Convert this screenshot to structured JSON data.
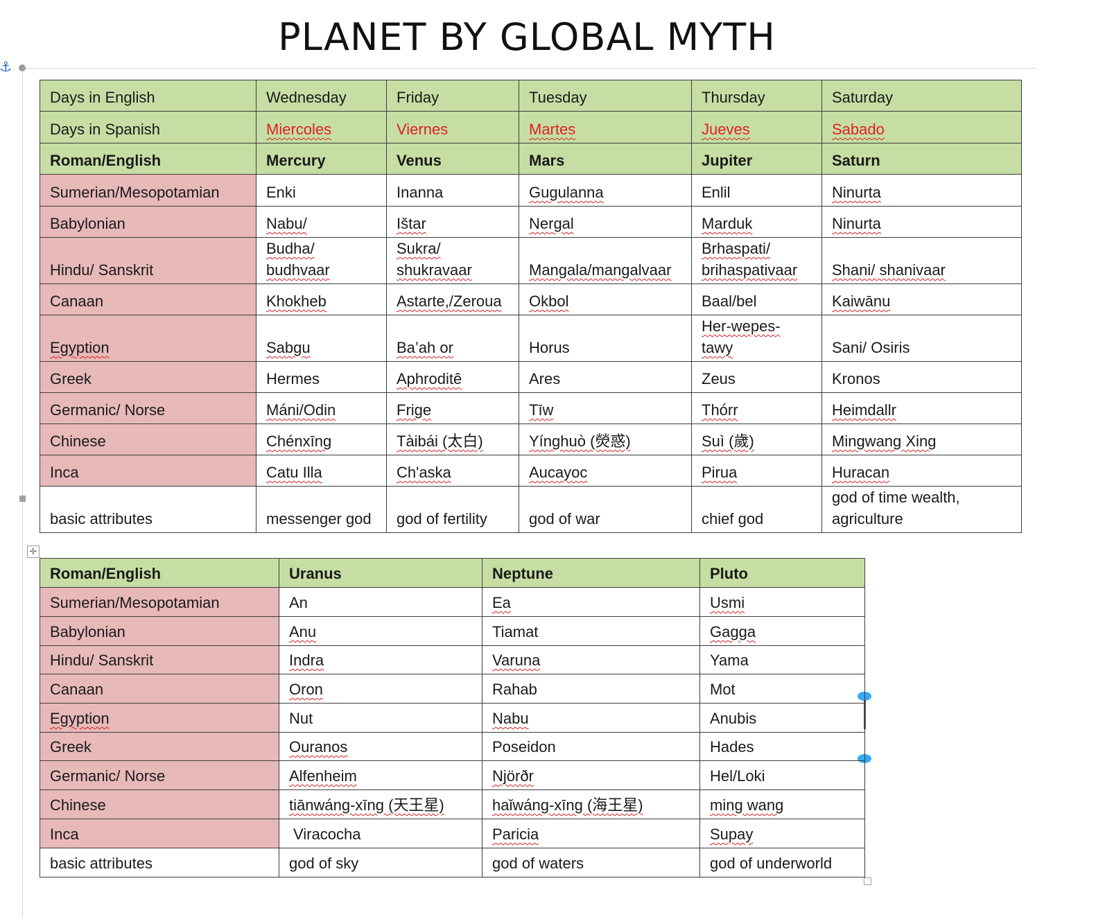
{
  "title": "PLANET BY GLOBAL MYTH",
  "colors": {
    "header_green": "#c6dea4",
    "label_pink": "#e8b9b9",
    "spanish_red": "#e02020",
    "handle_blue": "#36a9f2"
  },
  "table1": {
    "rows": {
      "days_english": {
        "label": "Days in English",
        "cells": [
          "Wednesday",
          "Friday",
          "Tuesday",
          "Thursday",
          "Saturday"
        ]
      },
      "days_spanish": {
        "label": "Days in Spanish",
        "cells": [
          "Miercoles",
          "Viernes",
          "Martes",
          "Jueves",
          "Sabado"
        ]
      },
      "roman": {
        "label": "Roman/English",
        "cells": [
          "Mercury",
          "Venus",
          "Mars",
          "Jupiter",
          "Saturn"
        ]
      },
      "sumerian": {
        "label": "Sumerian/Mesopotamian",
        "cells": [
          "Enki",
          "Inanna",
          "Gugulanna",
          "Enlil",
          "Ninurta"
        ]
      },
      "babylonian": {
        "label": "Babylonian",
        "cells": [
          "Nabu/",
          "Ištar",
          "Nergal",
          "Marduk",
          "Ninurta"
        ]
      },
      "hindu": {
        "label": "Hindu/ Sanskrit",
        "cells": [
          "Budha/ budhvaar",
          "Sukra/ shukravaar",
          "Mangala/mangalvaar",
          "Brhaspati/ brihaspativaar",
          "Shani/ shanivaar"
        ]
      },
      "canaan": {
        "label": "Canaan",
        "cells": [
          "Khokheb",
          "Astarte,/Zeroua",
          "Okbol",
          "Baal/bel",
          "Kaiwānu"
        ]
      },
      "egyption": {
        "label": "Egyption",
        "cells": [
          "Sabgu",
          "Ba’ah or",
          "Horus",
          "Her-wepes- tawy",
          "Sani/ Osiris"
        ]
      },
      "greek": {
        "label": "Greek",
        "cells": [
          "Hermes",
          "Aphroditê",
          "Ares",
          "Zeus",
          "Kronos"
        ]
      },
      "germanic": {
        "label": "Germanic/ Norse",
        "cells": [
          "Máni/Odin",
          "Frige",
          "Tīw",
          "Thórr",
          "Heimdallr"
        ]
      },
      "chinese": {
        "label": "Chinese",
        "cells": [
          "Chénxīng",
          "Tàibái (太白)",
          "Yínghuò (熒惑)",
          "Suì (歲)",
          "Mingwang Xing"
        ]
      },
      "inca": {
        "label": "Inca",
        "cells": [
          "Catu Illa",
          "Ch'aska",
          "Aucayoc",
          "Pirua",
          "Huracan"
        ]
      },
      "attributes": {
        "label": "basic attributes",
        "cells": [
          "messenger god",
          "god of fertility",
          "god of war",
          "chief god",
          "god of time wealth, agriculture"
        ]
      }
    }
  },
  "table2": {
    "rows": {
      "roman": {
        "label": "Roman/English",
        "cells": [
          "Uranus",
          "Neptune",
          "Pluto"
        ]
      },
      "sumerian": {
        "label": "Sumerian/Mesopotamian",
        "cells": [
          "An",
          "Ea",
          "Usmi"
        ]
      },
      "babylonian": {
        "label": "Babylonian",
        "cells": [
          "Anu",
          "Tiamat",
          "Gagga"
        ]
      },
      "hindu": {
        "label": "Hindu/ Sanskrit",
        "cells": [
          "Indra",
          "Varuna",
          "Yama"
        ]
      },
      "canaan": {
        "label": "Canaan",
        "cells": [
          "Oron",
          "Rahab",
          "Mot"
        ]
      },
      "egyption": {
        "label": "Egyption",
        "cells": [
          "Nut",
          "Nabu",
          "Anubis"
        ]
      },
      "greek": {
        "label": "Greek",
        "cells": [
          "Ouranos",
          "Poseidon",
          "Hades"
        ]
      },
      "germanic": {
        "label": "Germanic/ Norse",
        "cells": [
          "Alfenheim",
          "Njörðr",
          "Hel/Loki"
        ]
      },
      "chinese": {
        "label": "Chinese",
        "cells": [
          "tiānwáng-xīng  (天王星)",
          "haǐwáng-xīng (海王星)",
          "ming wang"
        ]
      },
      "inca": {
        "label": "Inca",
        "cells": [
          "Viracocha",
          "Paricia",
          "Supay"
        ]
      },
      "attributes": {
        "label": "basic attributes",
        "cells": [
          "god of sky",
          "god of waters",
          "god of underworld"
        ]
      }
    }
  }
}
